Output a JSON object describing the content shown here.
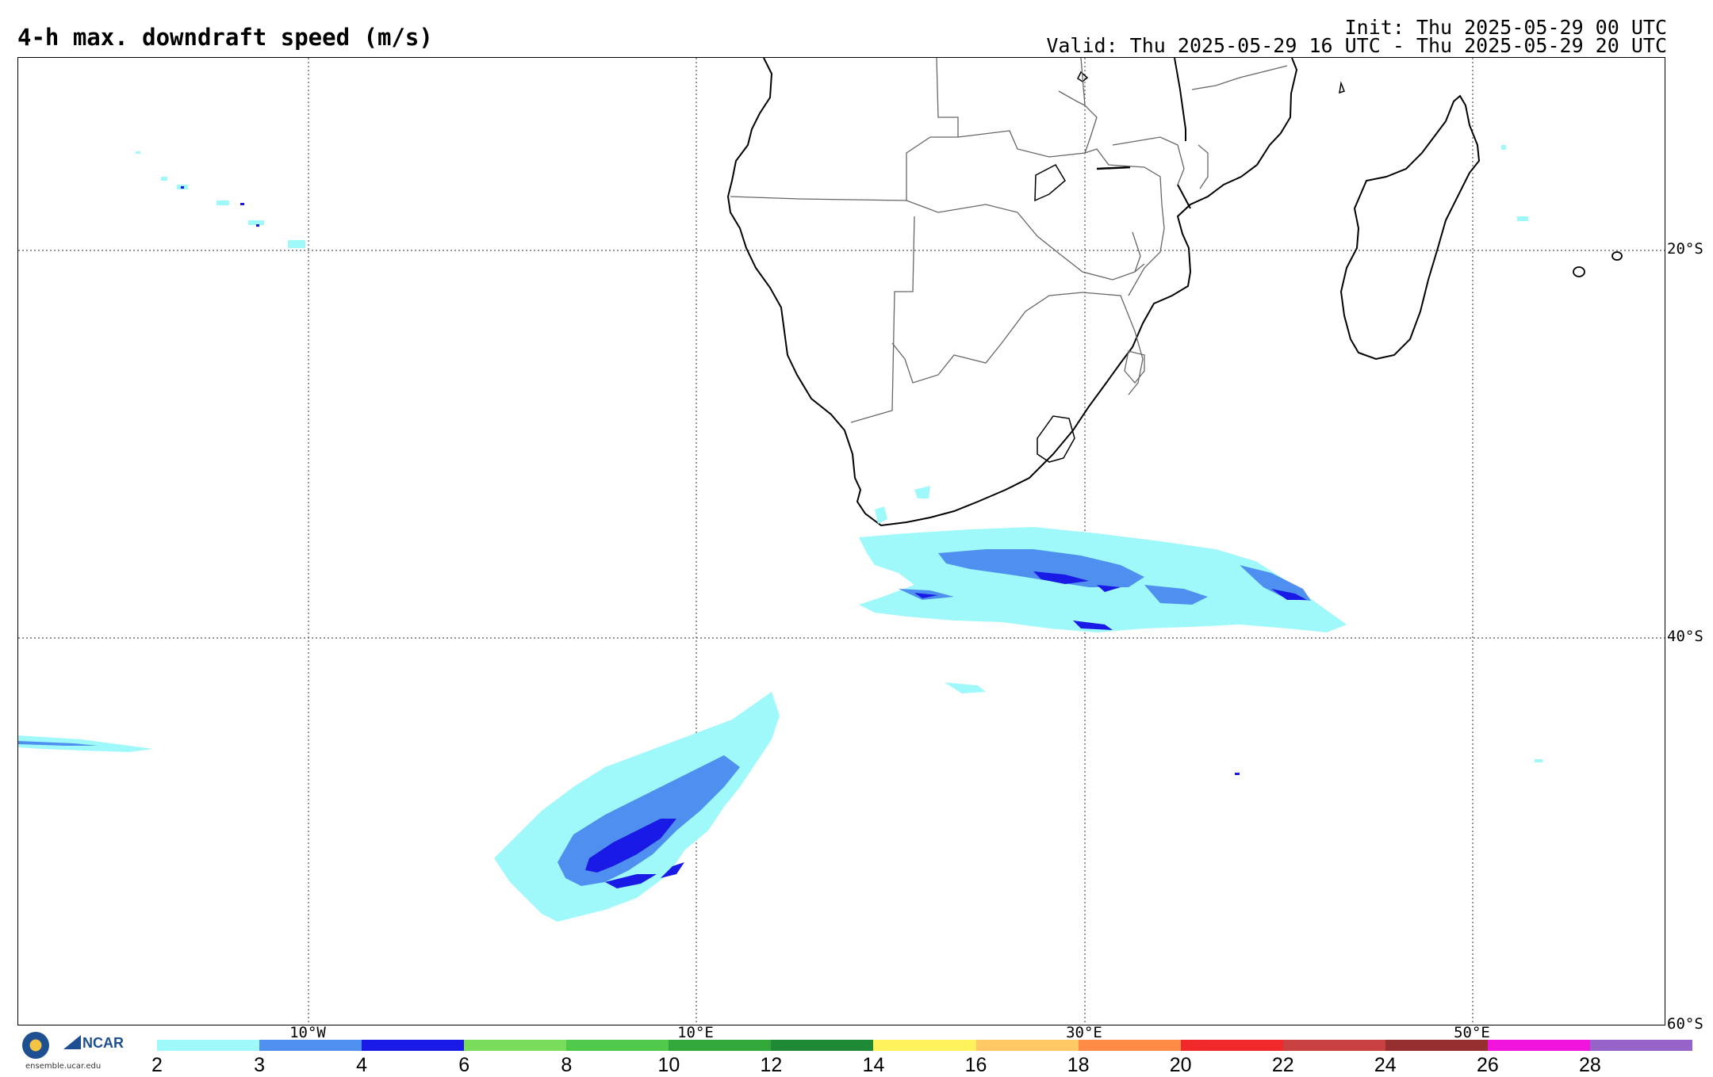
{
  "header": {
    "title": "4-h max. downdraft speed (m/s)",
    "init": "Init: Thu 2025-05-29 00 UTC",
    "valid": "Valid: Thu 2025-05-29 16 UTC - Thu 2025-05-29 20 UTC"
  },
  "map": {
    "lon_labels": [
      "10°W",
      "10°E",
      "30°E",
      "50°E"
    ],
    "lat_labels": [
      "20°S",
      "40°S",
      "60°S"
    ],
    "colors": {
      "light_cyan": "#9ff8fa",
      "medium_blue": "#4f8ff0",
      "dark_blue": "#1a1ae6",
      "coast": "#000000",
      "border": "#666666",
      "grid": "#555555"
    }
  },
  "colorbar": {
    "ticks": [
      "2",
      "3",
      "4",
      "6",
      "8",
      "10",
      "12",
      "14",
      "16",
      "18",
      "20",
      "22",
      "24",
      "26",
      "28"
    ],
    "colors": [
      "#9ff8fa",
      "#4f8ff0",
      "#1a1ae6",
      "#78dc5a",
      "#50c84a",
      "#32a83a",
      "#1f8a36",
      "#fff25a",
      "#ffc864",
      "#ff8c46",
      "#f0282a",
      "#c84040",
      "#963030",
      "#f014dc",
      "#9664c8"
    ]
  },
  "footer": {
    "logo_text": "ensemble.ucar.edu",
    "ncar": "NCAR",
    "nsf": "NSF"
  }
}
